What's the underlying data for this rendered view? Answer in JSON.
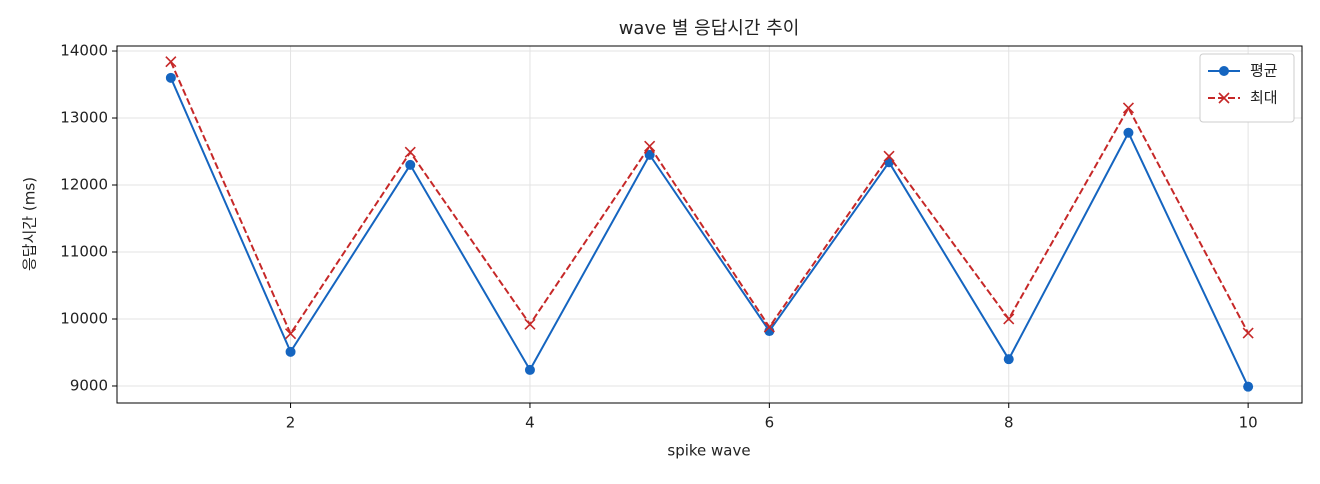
{
  "chart_data": {
    "type": "line",
    "title": "wave 별 응답시간 추이",
    "x_label": "spike wave",
    "y_label": "응답시간 (ms)",
    "x": [
      1,
      2,
      3,
      4,
      5,
      6,
      7,
      8,
      9,
      10
    ],
    "series": [
      {
        "name": "평균",
        "color": "#1565c0",
        "marker": "o",
        "linestyle": "solid",
        "values": [
          13600,
          9510,
          12300,
          9240,
          12450,
          9820,
          12340,
          9400,
          12780,
          8990
        ]
      },
      {
        "name": "최대",
        "color": "#c62828",
        "marker": "x",
        "linestyle": "dashed",
        "values": [
          13840,
          9780,
          12490,
          9920,
          12580,
          9880,
          12430,
          10000,
          13150,
          9790
        ]
      }
    ],
    "xlim": [
      0.55,
      10.45
    ],
    "ylim": [
      8746,
      14075
    ],
    "xticks": [
      2,
      4,
      6,
      8,
      10
    ],
    "yticks": [
      9000,
      10000,
      11000,
      12000,
      13000,
      14000
    ],
    "grid": true,
    "legend": "upper right"
  }
}
